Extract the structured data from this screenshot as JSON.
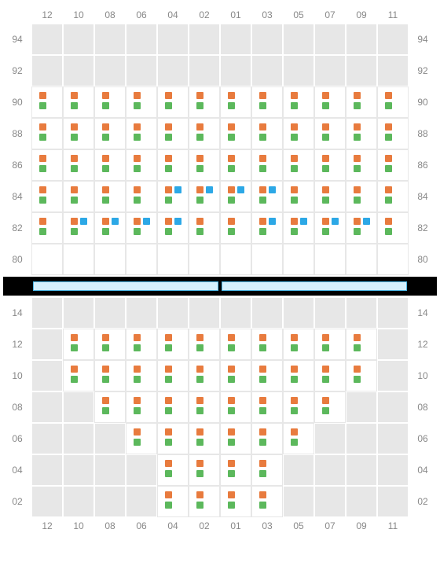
{
  "colors": {
    "orange": "#e87b3e",
    "green": "#5cb85c",
    "blue": "#2ca8e6",
    "grid_bg": "#e7e7e7",
    "cell_border": "#ffffff",
    "active_bg": "#ffffff",
    "active_border": "#e7e7e7",
    "axis_text": "#888888",
    "divider_bg": "#000000",
    "divider_bar_fill": "#d6f0fc",
    "divider_bar_border": "#4fb9e8"
  },
  "layout": {
    "columns": 12,
    "cell_size": 40,
    "square_size": 9,
    "axis_fontsize": 12
  },
  "x_axis": [
    "12",
    "10",
    "08",
    "06",
    "04",
    "02",
    "01",
    "03",
    "05",
    "07",
    "09",
    "11"
  ],
  "upper": {
    "y_axis": [
      "94",
      "92",
      "90",
      "88",
      "86",
      "84",
      "82",
      "80"
    ],
    "rows": [
      {
        "label": "94",
        "cells": [
          null,
          null,
          null,
          null,
          null,
          null,
          null,
          null,
          null,
          null,
          null,
          null
        ]
      },
      {
        "label": "92",
        "cells": [
          null,
          null,
          null,
          null,
          null,
          null,
          null,
          null,
          null,
          null,
          null,
          null
        ]
      },
      {
        "label": "90",
        "cells": [
          {
            "tl": "orange",
            "bl": "green"
          },
          {
            "tl": "orange",
            "bl": "green"
          },
          {
            "tl": "orange",
            "bl": "green"
          },
          {
            "tl": "orange",
            "bl": "green"
          },
          {
            "tl": "orange",
            "bl": "green"
          },
          {
            "tl": "orange",
            "bl": "green"
          },
          {
            "tl": "orange",
            "bl": "green"
          },
          {
            "tl": "orange",
            "bl": "green"
          },
          {
            "tl": "orange",
            "bl": "green"
          },
          {
            "tl": "orange",
            "bl": "green"
          },
          {
            "tl": "orange",
            "bl": "green"
          },
          {
            "tl": "orange",
            "bl": "green"
          }
        ]
      },
      {
        "label": "88",
        "cells": [
          {
            "tl": "orange",
            "bl": "green"
          },
          {
            "tl": "orange",
            "bl": "green"
          },
          {
            "tl": "orange",
            "bl": "green"
          },
          {
            "tl": "orange",
            "bl": "green"
          },
          {
            "tl": "orange",
            "bl": "green"
          },
          {
            "tl": "orange",
            "bl": "green"
          },
          {
            "tl": "orange",
            "bl": "green"
          },
          {
            "tl": "orange",
            "bl": "green"
          },
          {
            "tl": "orange",
            "bl": "green"
          },
          {
            "tl": "orange",
            "bl": "green"
          },
          {
            "tl": "orange",
            "bl": "green"
          },
          {
            "tl": "orange",
            "bl": "green"
          }
        ]
      },
      {
        "label": "86",
        "cells": [
          {
            "tl": "orange",
            "bl": "green"
          },
          {
            "tl": "orange",
            "bl": "green"
          },
          {
            "tl": "orange",
            "bl": "green"
          },
          {
            "tl": "orange",
            "bl": "green"
          },
          {
            "tl": "orange",
            "bl": "green"
          },
          {
            "tl": "orange",
            "bl": "green"
          },
          {
            "tl": "orange",
            "bl": "green"
          },
          {
            "tl": "orange",
            "bl": "green"
          },
          {
            "tl": "orange",
            "bl": "green"
          },
          {
            "tl": "orange",
            "bl": "green"
          },
          {
            "tl": "orange",
            "bl": "green"
          },
          {
            "tl": "orange",
            "bl": "green"
          }
        ]
      },
      {
        "label": "84",
        "cells": [
          {
            "tl": "orange",
            "bl": "green"
          },
          {
            "tl": "orange",
            "bl": "green"
          },
          {
            "tl": "orange",
            "bl": "green"
          },
          {
            "tl": "orange",
            "bl": "green"
          },
          {
            "tl": "orange",
            "tr": "blue",
            "bl": "green"
          },
          {
            "tl": "orange",
            "tr": "blue",
            "bl": "green"
          },
          {
            "tl": "orange",
            "tr": "blue",
            "bl": "green"
          },
          {
            "tl": "orange",
            "tr": "blue",
            "bl": "green"
          },
          {
            "tl": "orange",
            "bl": "green"
          },
          {
            "tl": "orange",
            "bl": "green"
          },
          {
            "tl": "orange",
            "bl": "green"
          },
          {
            "tl": "orange",
            "bl": "green"
          }
        ]
      },
      {
        "label": "82",
        "cells": [
          {
            "tl": "orange",
            "bl": "green"
          },
          {
            "tl": "orange",
            "tr": "blue",
            "bl": "green"
          },
          {
            "tl": "orange",
            "tr": "blue",
            "bl": "green"
          },
          {
            "tl": "orange",
            "tr": "blue",
            "bl": "green"
          },
          {
            "tl": "orange",
            "tr": "blue",
            "bl": "green"
          },
          {
            "tl": "orange",
            "bl": "green"
          },
          {
            "tl": "orange",
            "bl": "green"
          },
          {
            "tl": "orange",
            "tr": "blue",
            "bl": "green"
          },
          {
            "tl": "orange",
            "tr": "blue",
            "bl": "green"
          },
          {
            "tl": "orange",
            "tr": "blue",
            "bl": "green"
          },
          {
            "tl": "orange",
            "tr": "blue",
            "bl": "green"
          },
          {
            "tl": "orange",
            "bl": "green"
          }
        ]
      },
      {
        "label": "80",
        "cells": [
          {
            "empty_active": true
          },
          {
            "empty_active": true
          },
          {
            "empty_active": true
          },
          {
            "empty_active": true
          },
          {
            "empty_active": true
          },
          {
            "empty_active": true
          },
          {
            "empty_active": true
          },
          {
            "empty_active": true
          },
          {
            "empty_active": true
          },
          {
            "empty_active": true
          },
          {
            "empty_active": true
          },
          {
            "empty_active": true
          }
        ]
      }
    ]
  },
  "lower": {
    "y_axis": [
      "14",
      "12",
      "10",
      "08",
      "06",
      "04",
      "02"
    ],
    "rows": [
      {
        "label": "14",
        "cells": [
          null,
          null,
          null,
          null,
          null,
          null,
          null,
          null,
          null,
          null,
          null,
          null
        ]
      },
      {
        "label": "12",
        "cells": [
          null,
          {
            "tl": "orange",
            "bl": "green"
          },
          {
            "tl": "orange",
            "bl": "green"
          },
          {
            "tl": "orange",
            "bl": "green"
          },
          {
            "tl": "orange",
            "bl": "green"
          },
          {
            "tl": "orange",
            "bl": "green"
          },
          {
            "tl": "orange",
            "bl": "green"
          },
          {
            "tl": "orange",
            "bl": "green"
          },
          {
            "tl": "orange",
            "bl": "green"
          },
          {
            "tl": "orange",
            "bl": "green"
          },
          {
            "tl": "orange",
            "bl": "green"
          },
          null
        ]
      },
      {
        "label": "10",
        "cells": [
          null,
          {
            "tl": "orange",
            "bl": "green"
          },
          {
            "tl": "orange",
            "bl": "green"
          },
          {
            "tl": "orange",
            "bl": "green"
          },
          {
            "tl": "orange",
            "bl": "green"
          },
          {
            "tl": "orange",
            "bl": "green"
          },
          {
            "tl": "orange",
            "bl": "green"
          },
          {
            "tl": "orange",
            "bl": "green"
          },
          {
            "tl": "orange",
            "bl": "green"
          },
          {
            "tl": "orange",
            "bl": "green"
          },
          {
            "tl": "orange",
            "bl": "green"
          },
          null
        ]
      },
      {
        "label": "08",
        "cells": [
          null,
          null,
          {
            "tl": "orange",
            "bl": "green"
          },
          {
            "tl": "orange",
            "bl": "green"
          },
          {
            "tl": "orange",
            "bl": "green"
          },
          {
            "tl": "orange",
            "bl": "green"
          },
          {
            "tl": "orange",
            "bl": "green"
          },
          {
            "tl": "orange",
            "bl": "green"
          },
          {
            "tl": "orange",
            "bl": "green"
          },
          {
            "tl": "orange",
            "bl": "green"
          },
          null,
          null
        ]
      },
      {
        "label": "06",
        "cells": [
          null,
          null,
          null,
          {
            "tl": "orange",
            "bl": "green"
          },
          {
            "tl": "orange",
            "bl": "green"
          },
          {
            "tl": "orange",
            "bl": "green"
          },
          {
            "tl": "orange",
            "bl": "green"
          },
          {
            "tl": "orange",
            "bl": "green"
          },
          {
            "tl": "orange",
            "bl": "green"
          },
          null,
          null,
          null
        ]
      },
      {
        "label": "04",
        "cells": [
          null,
          null,
          null,
          null,
          {
            "tl": "orange",
            "bl": "green"
          },
          {
            "tl": "orange",
            "bl": "green"
          },
          {
            "tl": "orange",
            "bl": "green"
          },
          {
            "tl": "orange",
            "bl": "green"
          },
          null,
          null,
          null,
          null
        ]
      },
      {
        "label": "02",
        "cells": [
          null,
          null,
          null,
          null,
          {
            "tl": "orange",
            "bl": "green"
          },
          {
            "tl": "orange",
            "bl": "green"
          },
          {
            "tl": "orange",
            "bl": "green"
          },
          {
            "tl": "orange",
            "bl": "green"
          },
          null,
          null,
          null,
          null
        ]
      }
    ]
  }
}
